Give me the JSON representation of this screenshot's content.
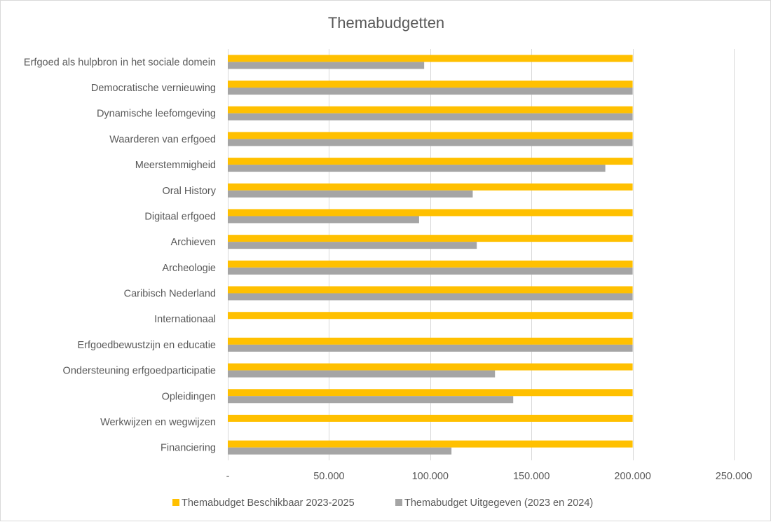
{
  "chart_data": {
    "type": "bar",
    "orientation": "horizontal",
    "title": "Themabudgetten",
    "xlabel": "",
    "ylabel": "",
    "xlim": [
      0,
      250000
    ],
    "x_ticks": [
      0,
      50000,
      100000,
      150000,
      200000,
      250000
    ],
    "x_tick_labels": [
      "-",
      "50.000",
      "100.000",
      "150.000",
      "200.000",
      "250.000"
    ],
    "grid": true,
    "legend_position": "bottom",
    "categories": [
      "Erfgoed als hulpbron in het sociale domein",
      "Democratische vernieuwing",
      "Dynamische leefomgeving",
      "Waarderen van erfgoed",
      "Meerstemmigheid",
      "Oral History",
      "Digitaal erfgoed",
      "Archieven",
      "Archeologie",
      "Caribisch Nederland",
      "Internationaal",
      "Erfgoedbewustzijn en educatie",
      "Ondersteuning erfgoedparticipatie",
      "Opleidingen",
      "Werkwijzen en wegwijzen",
      "Financiering"
    ],
    "series": [
      {
        "name": "Themabudget Beschikbaar 2023-2025",
        "color": "#ffc000",
        "values": [
          200000,
          200000,
          200000,
          200000,
          200000,
          200000,
          200000,
          200000,
          200000,
          200000,
          200000,
          200000,
          200000,
          200000,
          200000,
          200000
        ]
      },
      {
        "name": "Themabudget Uitgegeven (2023 en 2024)",
        "color": "#a5a5a5",
        "values": [
          97000,
          200000,
          200000,
          200000,
          186500,
          121000,
          94500,
          123000,
          200000,
          200000,
          0,
          200000,
          132000,
          141000,
          0,
          110500
        ]
      }
    ]
  }
}
